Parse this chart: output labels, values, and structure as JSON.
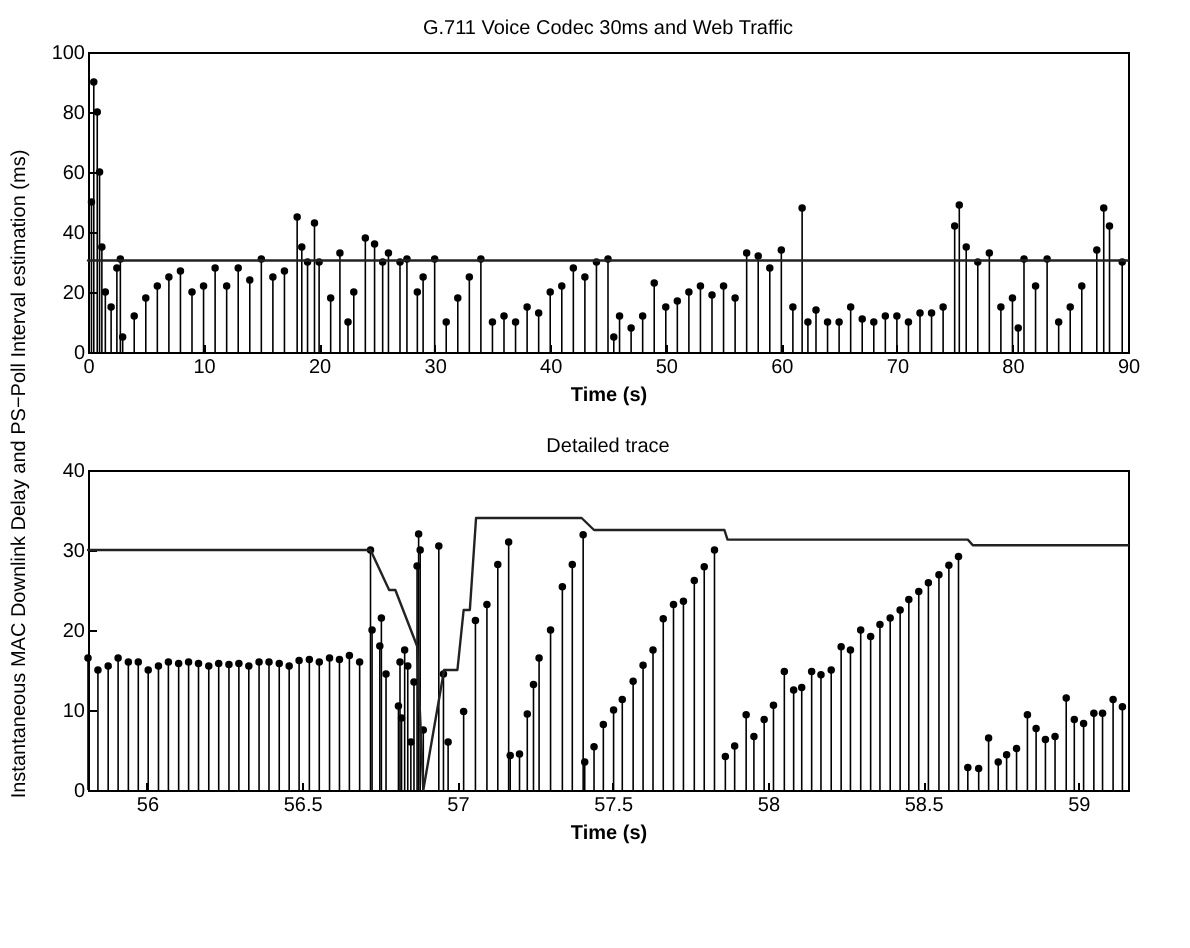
{
  "chart_data": [
    {
      "type": "lollipop",
      "title": "G.711 Voice Codec 30ms and Web Traffic",
      "xlabel": "Time (s)",
      "ylabel": "Instantaneous MAC Downlink Delay and PS−Poll Interval estimation (ms)",
      "xlim": [
        0,
        90
      ],
      "xticks": [
        0,
        10,
        20,
        30,
        40,
        50,
        60,
        70,
        80,
        90
      ],
      "ylim": [
        0,
        100
      ],
      "yticks": [
        0,
        20,
        40,
        60,
        80,
        100
      ],
      "marker": "circle",
      "grid": false,
      "series": [
        {
          "color": "#000000",
          "x": [
            0.3,
            0.5,
            0.8,
            1.0,
            1.2,
            1.5,
            2,
            2.5,
            2.8,
            3,
            4,
            5,
            6,
            7,
            8,
            9,
            10,
            11,
            12,
            13,
            14,
            15,
            16,
            17,
            18.1,
            18.5,
            19,
            19.6,
            20,
            21,
            21.8,
            22.5,
            23,
            24,
            24.8,
            25.5,
            26,
            27,
            27.6,
            28.5,
            29,
            30,
            31,
            32,
            33,
            34,
            35,
            36,
            37,
            38,
            39,
            40,
            41,
            42,
            43,
            44,
            45,
            45.5,
            46,
            47,
            48,
            49,
            50,
            51,
            52,
            53,
            54,
            55,
            56,
            57,
            58,
            59,
            60,
            61,
            61.8,
            62.3,
            63,
            64,
            65,
            66,
            67,
            68,
            69,
            70,
            71,
            72,
            73,
            74,
            75,
            75.4,
            76,
            77,
            78,
            79,
            80,
            80.5,
            81,
            82,
            83,
            84,
            85,
            86,
            87.3,
            87.9,
            88.4,
            89.5
          ],
          "values": [
            50,
            90,
            80,
            60,
            35,
            20,
            15,
            28,
            31,
            5,
            12,
            18,
            22,
            25,
            27,
            20,
            22,
            28,
            22,
            28,
            24,
            31,
            25,
            27,
            45,
            35,
            30,
            43,
            30,
            18,
            33,
            10,
            20,
            38,
            36,
            30,
            33,
            30,
            31,
            20,
            25,
            31,
            10,
            18,
            25,
            31,
            10,
            12,
            10,
            15,
            13,
            20,
            22,
            28,
            25,
            30,
            31,
            5,
            12,
            8,
            12,
            23,
            15,
            17,
            20,
            22,
            19,
            22,
            18,
            33,
            32,
            28,
            34,
            15,
            48,
            10,
            14,
            10,
            10,
            15,
            11,
            10,
            12,
            12,
            10,
            13,
            13,
            15,
            42,
            49,
            35,
            30,
            33,
            15,
            18,
            8,
            31,
            22,
            31,
            10,
            15,
            22,
            34,
            48,
            42,
            30
          ]
        },
        {
          "type": "line",
          "marker": "none",
          "color": "#222222",
          "x": [
            0,
            90
          ],
          "values": [
            30.5,
            30.5
          ]
        }
      ]
    },
    {
      "type": "lollipop",
      "title": "Detailed trace",
      "xlabel": "Time (s)",
      "xlim": [
        55.81,
        59.16
      ],
      "xticks": [
        56,
        56.5,
        57,
        57.5,
        58,
        58.5,
        59
      ],
      "ylim": [
        0,
        40
      ],
      "yticks": [
        0,
        10,
        20,
        30,
        40
      ],
      "marker": "circle",
      "grid": false,
      "series": [
        {
          "color": "#000000",
          "x": [
            55.81,
            55.842,
            55.875,
            55.907,
            55.94,
            55.972,
            56.004,
            56.037,
            56.069,
            56.102,
            56.134,
            56.166,
            56.199,
            56.231,
            56.264,
            56.296,
            56.328,
            56.361,
            56.393,
            56.426,
            56.458,
            56.49,
            56.523,
            56.555,
            56.588,
            56.62,
            56.652,
            56.685,
            56.72,
            56.725,
            56.75,
            56.755,
            56.77,
            56.81,
            56.815,
            56.82,
            56.83,
            56.84,
            56.85,
            56.86,
            56.87,
            56.875,
            56.88,
            56.89,
            56.94,
            56.955,
            56.97,
            57.02,
            57.058,
            57.095,
            57.13,
            57.165,
            57.17,
            57.2,
            57.225,
            57.245,
            57.263,
            57.3,
            57.338,
            57.37,
            57.405,
            57.41,
            57.44,
            57.47,
            57.503,
            57.531,
            57.566,
            57.598,
            57.63,
            57.663,
            57.696,
            57.728,
            57.763,
            57.795,
            57.828,
            57.863,
            57.893,
            57.93,
            57.955,
            57.988,
            58.018,
            58.053,
            58.083,
            58.109,
            58.141,
            58.171,
            58.204,
            58.236,
            58.266,
            58.299,
            58.331,
            58.361,
            58.394,
            58.426,
            58.454,
            58.486,
            58.517,
            58.551,
            58.583,
            58.614,
            58.644,
            58.679,
            58.711,
            58.742,
            58.769,
            58.801,
            58.836,
            58.864,
            58.894,
            58.925,
            58.961,
            58.987,
            59.017,
            59.05,
            59.078,
            59.112,
            59.142
          ],
          "values": [
            16.5,
            15,
            15.5,
            16.5,
            16,
            16,
            15,
            15.5,
            16,
            15.8,
            16,
            15.8,
            15.5,
            15.8,
            15.7,
            15.8,
            15.5,
            16,
            16,
            15.8,
            15.5,
            16.2,
            16.3,
            16,
            16.5,
            16.3,
            16.8,
            16,
            30,
            20,
            18,
            21.5,
            14.5,
            10.5,
            16,
            9,
            17.5,
            15.5,
            6,
            13.5,
            28,
            32,
            30,
            7.5,
            30.5,
            14.5,
            6,
            9.8,
            21.2,
            23.2,
            28.2,
            31,
            4.3,
            4.5,
            9.5,
            13.2,
            16.5,
            20,
            25.4,
            28.2,
            31.9,
            3.5,
            5.4,
            8.2,
            10,
            11.3,
            13.6,
            15.6,
            17.5,
            21.4,
            23.2,
            23.6,
            26.2,
            27.9,
            30,
            4.2,
            5.5,
            9.4,
            6.7,
            8.8,
            10.6,
            14.8,
            12.5,
            12.8,
            14.8,
            14.4,
            15,
            17.9,
            17.5,
            20,
            19.2,
            20.7,
            21.5,
            22.5,
            23.8,
            24.8,
            25.9,
            26.9,
            28.1,
            29.2,
            2.8,
            2.7,
            6.5,
            3.5,
            4.4,
            5.2,
            9.4,
            7.7,
            6.3,
            6.7,
            11.5,
            8.8,
            8.3,
            9.6,
            9.6,
            11.3,
            10.4
          ]
        },
        {
          "type": "line",
          "marker": "none",
          "color": "#222222",
          "x": [
            55.81,
            56.72,
            56.78,
            56.8,
            56.87,
            56.89,
            56.957,
            57.0,
            57.02,
            57.04,
            57.06,
            57.4,
            57.44,
            57.86,
            57.87,
            58.644,
            58.66,
            59.16
          ],
          "values": [
            30,
            30,
            25,
            25,
            18,
            0,
            15,
            15,
            22.5,
            22.5,
            34,
            34,
            32.5,
            32.5,
            31.3,
            31.3,
            30.6,
            30.6
          ]
        }
      ]
    }
  ]
}
